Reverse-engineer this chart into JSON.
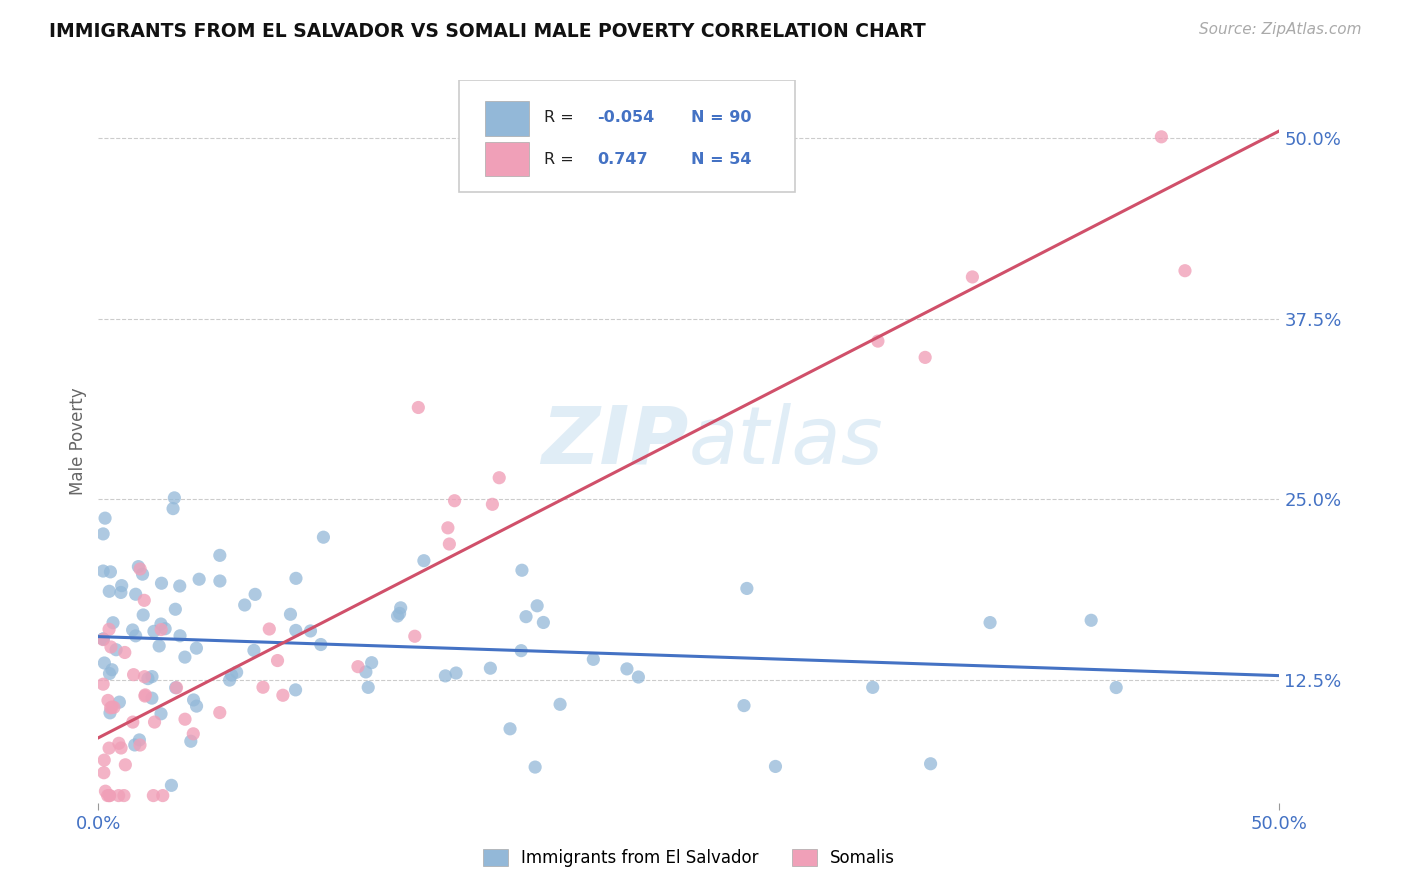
{
  "title": "IMMIGRANTS FROM EL SALVADOR VS SOMALI MALE POVERTY CORRELATION CHART",
  "source": "Source: ZipAtlas.com",
  "ylabel": "Male Poverty",
  "xmin": 0.0,
  "xmax": 0.5,
  "ymin": 0.04,
  "ymax": 0.54,
  "yticks": [
    0.125,
    0.25,
    0.375,
    0.5
  ],
  "ytick_labels": [
    "12.5%",
    "25.0%",
    "37.5%",
    "50.0%"
  ],
  "xticks": [
    0.0,
    0.5
  ],
  "xtick_labels": [
    "0.0%",
    "50.0%"
  ],
  "color_blue": "#93b8d8",
  "color_pink": "#f0a0b8",
  "line_blue": "#4472c4",
  "line_pink": "#d0506a",
  "legend_label1": "Immigrants from El Salvador",
  "legend_label2": "Somalis",
  "blue_r": "-0.054",
  "blue_n": "90",
  "pink_r": "0.747",
  "pink_n": "54",
  "blue_line_x0": 0.0,
  "blue_line_x1": 0.5,
  "blue_line_y0": 0.155,
  "blue_line_y1": 0.128,
  "pink_line_x0": 0.0,
  "pink_line_x1": 0.5,
  "pink_line_y0": 0.085,
  "pink_line_y1": 0.505
}
